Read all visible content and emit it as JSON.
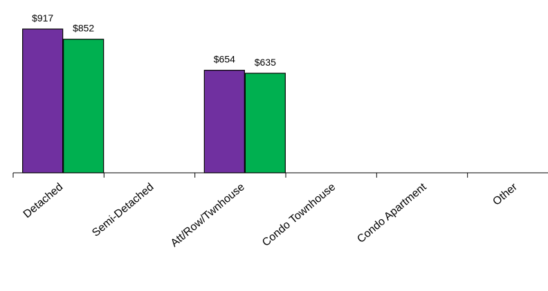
{
  "chart_data": {
    "type": "bar",
    "title": "",
    "xlabel": "",
    "ylabel": "",
    "categories": [
      "Detached",
      "Semi-Detached",
      "Att/Row/Twnhouse",
      "Condo Townhouse",
      "Condo Apartment",
      "Other"
    ],
    "series": [
      {
        "color": "#7030A0",
        "values": [
          917,
          null,
          654,
          null,
          null,
          null
        ]
      },
      {
        "color": "#00B050",
        "values": [
          852,
          null,
          635,
          null,
          null,
          null
        ]
      }
    ],
    "data_labels": [
      [
        "$917",
        null,
        "$654",
        null,
        null,
        null
      ],
      [
        "$852",
        null,
        "$635",
        null,
        null,
        null
      ]
    ],
    "ylim": [
      0,
      1000
    ],
    "y_axis_visible": false,
    "grid": false,
    "legend": "none"
  }
}
